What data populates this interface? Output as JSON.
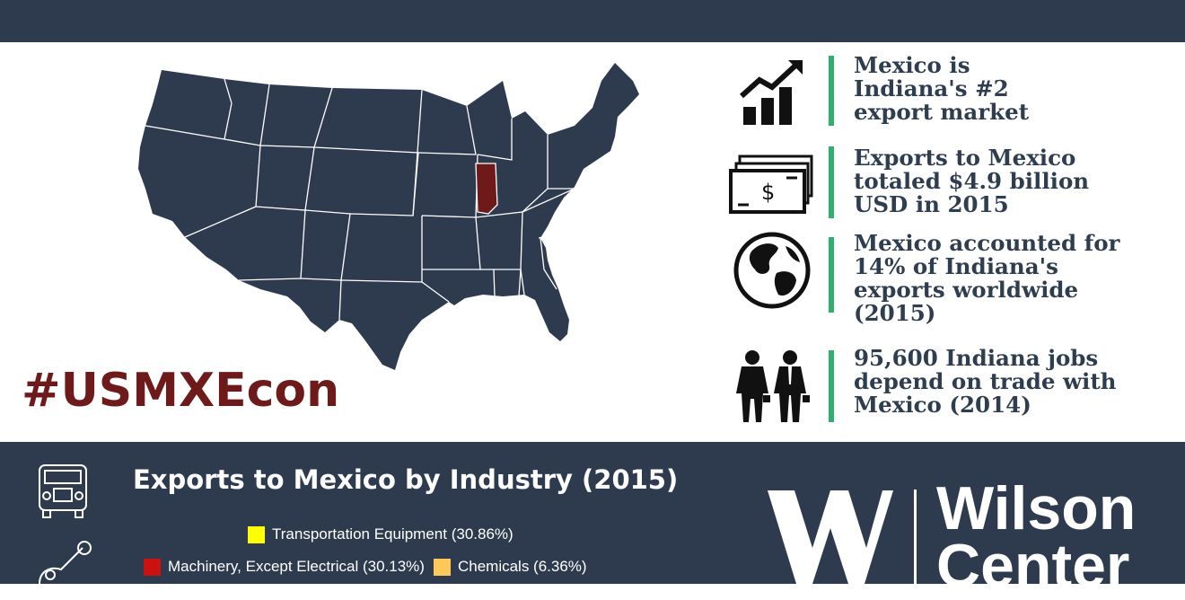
{
  "hashtag": "#USMXEcon",
  "facts": [
    {
      "icon": "growth-chart-icon",
      "lines": [
        "Mexico is",
        "Indiana's #2",
        "export market"
      ]
    },
    {
      "icon": "money-stack-icon",
      "lines": [
        "Exports to Mexico",
        "totaled $4.9 billion",
        "USD in 2015"
      ]
    },
    {
      "icon": "globe-icon",
      "lines": [
        "Mexico accounted for",
        "14% of Indiana's",
        "exports worldwide",
        "(2015)"
      ]
    },
    {
      "icon": "workers-icon",
      "lines": [
        "95,600 Indiana jobs",
        "depend on trade with",
        "Mexico (2014)"
      ]
    }
  ],
  "industry": {
    "title": "Exports to Mexico by Industry (2015)",
    "legend": [
      {
        "label": "Transportation Equipment (30.86%)",
        "color": "#ffff00"
      },
      {
        "label": "Machinery, Except Electrical (30.13%)",
        "color": "#cc1111"
      },
      {
        "label": "Chemicals (6.36%)",
        "color": "#ffc85a"
      }
    ]
  },
  "logo": {
    "line1": "Wilson",
    "line2": "Center"
  },
  "colors": {
    "navy": "#2e3b4f",
    "highlight": "#6e1a1a",
    "accent": "#2fb06e"
  }
}
